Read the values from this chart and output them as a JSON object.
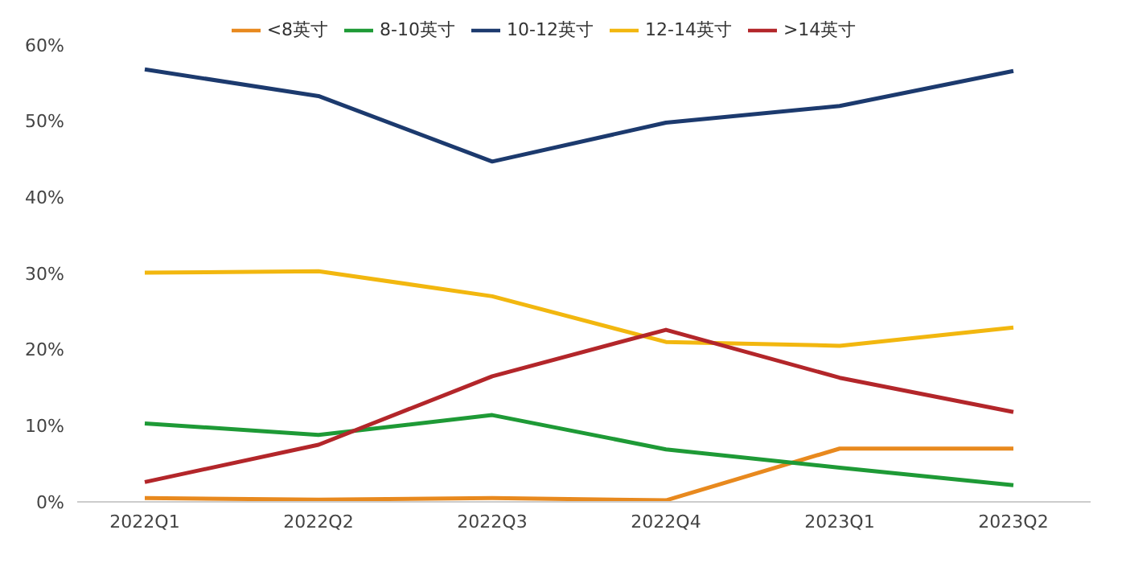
{
  "chart_data": {
    "type": "line",
    "categories": [
      "2022Q1",
      "2022Q2",
      "2022Q3",
      "2022Q4",
      "2023Q1",
      "2023Q2"
    ],
    "series": [
      {
        "name": "<8英寸",
        "color": "#e8891e",
        "values": [
          0.5,
          0.3,
          0.5,
          0.2,
          7,
          7
        ]
      },
      {
        "name": "8-10英寸",
        "color": "#1e9a36",
        "values": [
          10.3,
          8.8,
          11.4,
          6.9,
          4.5,
          2.2
        ]
      },
      {
        "name": "10-12英寸",
        "color": "#1c3a6e",
        "values": [
          56.8,
          53.3,
          44.7,
          49.8,
          52.0,
          56.6
        ]
      },
      {
        "name": "12-14英寸",
        "color": "#f2b70f",
        "values": [
          30.1,
          30.3,
          27.0,
          21.0,
          20.5,
          22.9
        ]
      },
      {
        "name": ">14英寸",
        "color": "#b3262a",
        "values": [
          2.6,
          7.5,
          16.5,
          22.6,
          16.3,
          11.8
        ]
      }
    ],
    "ylim": [
      0,
      60
    ],
    "yticks": [
      {
        "value": 0,
        "label": "0%"
      },
      {
        "value": 10,
        "label": "10%"
      },
      {
        "value": 20,
        "label": "20%"
      },
      {
        "value": 30,
        "label": "30%"
      },
      {
        "value": 40,
        "label": "40%"
      },
      {
        "value": 50,
        "label": "50%"
      },
      {
        "value": 60,
        "label": "60%"
      }
    ],
    "legend": "top",
    "marker": "none",
    "line_style": "solid",
    "grid": false
  }
}
